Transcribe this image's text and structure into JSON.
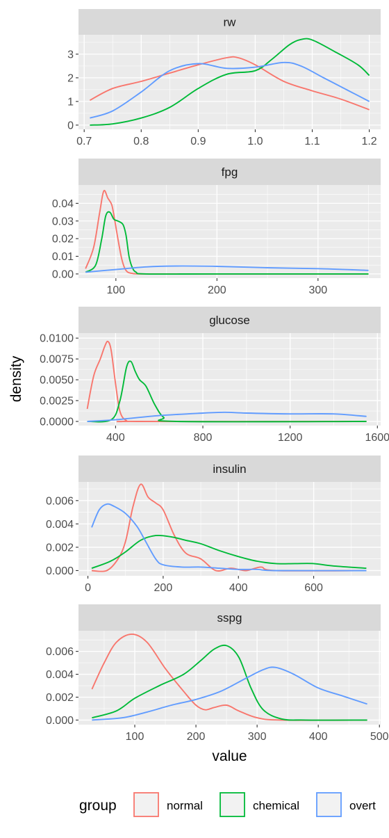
{
  "chart_data": {
    "type": "line",
    "xlabel": "value",
    "ylabel": "density",
    "grid": true,
    "legend": {
      "title": "group",
      "position": "bottom",
      "entries": [
        {
          "label": "normal",
          "color": "#F8766D"
        },
        {
          "label": "chemical",
          "color": "#00BA38"
        },
        {
          "label": "overt",
          "color": "#619CFF"
        }
      ]
    },
    "panels": [
      {
        "title": "rw",
        "xlim": [
          0.69,
          1.22
        ],
        "ylim": [
          -0.18,
          3.82
        ],
        "xticks": [
          0.7,
          0.8,
          0.9,
          1.0,
          1.1,
          1.2
        ],
        "xtick_labels": [
          "0.7",
          "0.8",
          "0.9",
          "1.0",
          "1.1",
          "1.2"
        ],
        "yticks": [
          0,
          1,
          2,
          3
        ],
        "ytick_labels": [
          "0",
          "1",
          "2",
          "3"
        ],
        "series": [
          {
            "name": "normal",
            "x": [
              0.71,
              0.75,
              0.8,
              0.85,
              0.9,
              0.95,
              0.97,
              1.0,
              1.05,
              1.1,
              1.15,
              1.2
            ],
            "y": [
              1.05,
              1.55,
              1.85,
              2.2,
              2.55,
              2.85,
              2.85,
              2.55,
              1.85,
              1.45,
              1.1,
              0.65
            ]
          },
          {
            "name": "chemical",
            "x": [
              0.71,
              0.75,
              0.8,
              0.85,
              0.9,
              0.95,
              1.0,
              1.03,
              1.06,
              1.08,
              1.1,
              1.14,
              1.18,
              1.2
            ],
            "y": [
              0.0,
              0.05,
              0.3,
              0.75,
              1.55,
              2.15,
              2.3,
              2.8,
              3.4,
              3.62,
              3.6,
              3.1,
              2.55,
              2.1
            ]
          },
          {
            "name": "overt",
            "x": [
              0.71,
              0.75,
              0.8,
              0.85,
              0.9,
              0.95,
              1.0,
              1.05,
              1.08,
              1.12,
              1.16,
              1.2
            ],
            "y": [
              0.3,
              0.6,
              1.4,
              2.3,
              2.6,
              2.4,
              2.45,
              2.65,
              2.5,
              2.0,
              1.5,
              1.0
            ]
          }
        ]
      },
      {
        "title": "fpg",
        "xlim": [
          63,
          362
        ],
        "ylim": [
          -0.0024,
          0.0504
        ],
        "xticks": [
          100,
          200,
          300
        ],
        "xtick_labels": [
          "100",
          "200",
          "300"
        ],
        "yticks": [
          0,
          0.01,
          0.02,
          0.03,
          0.04
        ],
        "ytick_labels": [
          "0.00",
          "0.01",
          "0.02",
          "0.03",
          "0.04"
        ],
        "series": [
          {
            "name": "normal",
            "x": [
              70,
              78,
              84,
              88,
              92,
              96,
              99,
              102,
              106,
              110,
              116,
              130,
              200,
              350
            ],
            "y": [
              0.003,
              0.015,
              0.035,
              0.047,
              0.043,
              0.039,
              0.03,
              0.02,
              0.008,
              0.002,
              0.0003,
              0.0,
              0.0,
              0.0
            ]
          },
          {
            "name": "chemical",
            "x": [
              70,
              80,
              86,
              90,
              94,
              98,
              102,
              107,
              110,
              113,
              116,
              120,
              130,
              200,
              350
            ],
            "y": [
              0.001,
              0.005,
              0.02,
              0.033,
              0.035,
              0.031,
              0.03,
              0.028,
              0.022,
              0.01,
              0.004,
              0.001,
              0.0,
              0.0,
              0.0
            ]
          },
          {
            "name": "overt",
            "x": [
              70,
              100,
              130,
              160,
              200,
              250,
              300,
              350
            ],
            "y": [
              0.001,
              0.0025,
              0.004,
              0.0045,
              0.0043,
              0.0035,
              0.003,
              0.002
            ]
          }
        ]
      },
      {
        "title": "glucose",
        "xlim": [
          230,
          1615
        ],
        "ylim": [
          -0.0005,
          0.0106
        ],
        "xticks": [
          400,
          800,
          1200,
          1600
        ],
        "xtick_labels": [
          "400",
          "800",
          "1200",
          "1600"
        ],
        "yticks": [
          0,
          0.0025,
          0.005,
          0.0075,
          0.01
        ],
        "ytick_labels": [
          "0.0000",
          "0.0025",
          "0.0050",
          "0.0075",
          "0.0100"
        ],
        "series": [
          {
            "name": "normal",
            "x": [
              270,
              300,
              330,
              350,
              365,
              380,
              400,
              420,
              450,
              500,
              1550
            ],
            "y": [
              0.0015,
              0.0055,
              0.0075,
              0.009,
              0.0096,
              0.0085,
              0.0045,
              0.0012,
              0.0001,
              0.0,
              0.0
            ]
          },
          {
            "name": "chemical",
            "x": [
              270,
              380,
              420,
              450,
              470,
              490,
              510,
              540,
              580,
              620,
              680,
              1550
            ],
            "y": [
              0.0,
              0.0002,
              0.0025,
              0.0065,
              0.0072,
              0.006,
              0.005,
              0.0042,
              0.002,
              0.0005,
              0.0,
              0.0
            ]
          },
          {
            "name": "overt",
            "x": [
              270,
              400,
              600,
              800,
              900,
              1000,
              1200,
              1400,
              1550
            ],
            "y": [
              0.0,
              0.0002,
              0.0007,
              0.001,
              0.0011,
              0.001,
              0.0009,
              0.0009,
              0.0006
            ]
          }
        ]
      },
      {
        "title": "insulin",
        "xlim": [
          -25,
          778
        ],
        "ylim": [
          -0.00045,
          0.0076
        ],
        "xticks": [
          0,
          200,
          400,
          600
        ],
        "xtick_labels": [
          "0",
          "200",
          "400",
          "600"
        ],
        "yticks": [
          0,
          0.002,
          0.004,
          0.006
        ],
        "ytick_labels": [
          "0.000",
          "0.002",
          "0.004",
          "0.006"
        ],
        "series": [
          {
            "name": "normal",
            "x": [
              10,
              50,
              80,
              100,
              120,
              140,
              160,
              180,
              200,
              230,
              260,
              300,
              340,
              380,
              420,
              460,
              500,
              740
            ],
            "y": [
              0.0,
              0.0,
              0.001,
              0.0025,
              0.0055,
              0.0074,
              0.0063,
              0.0058,
              0.0052,
              0.003,
              0.0015,
              0.001,
              0.0,
              0.0002,
              0.0,
              0.0003,
              0.0,
              0.0
            ]
          },
          {
            "name": "chemical",
            "x": [
              10,
              60,
              100,
              140,
              180,
              220,
              260,
              300,
              350,
              400,
              450,
              500,
              550,
              600,
              650,
              740
            ],
            "y": [
              0.0002,
              0.0008,
              0.0016,
              0.0026,
              0.003,
              0.0029,
              0.0026,
              0.0023,
              0.0017,
              0.0012,
              0.0008,
              0.0006,
              0.0006,
              0.0006,
              0.0004,
              0.0002
            ]
          },
          {
            "name": "overt",
            "x": [
              10,
              30,
              50,
              70,
              100,
              130,
              150,
              180,
              200,
              250,
              300,
              350,
              400,
              450,
              500,
              740
            ],
            "y": [
              0.0037,
              0.0052,
              0.0057,
              0.0055,
              0.0049,
              0.0038,
              0.0027,
              0.001,
              0.0005,
              0.0003,
              0.0003,
              0.0002,
              0.0001,
              0.0001,
              0.0,
              0.0
            ]
          }
        ]
      },
      {
        "title": "sspg",
        "xlim": [
          8,
          502
        ],
        "ylim": [
          -0.0004,
          0.0078
        ],
        "xticks": [
          100,
          200,
          300,
          400,
          500
        ],
        "xtick_labels": [
          "100",
          "200",
          "300",
          "400",
          "500"
        ],
        "yticks": [
          0,
          0.002,
          0.004,
          0.006
        ],
        "ytick_labels": [
          "0.000",
          "0.002",
          "0.004",
          "0.006"
        ],
        "series": [
          {
            "name": "normal",
            "x": [
              30,
              50,
              70,
              95,
              120,
              150,
              180,
              200,
              215,
              230,
              250,
              270,
              300,
              340,
              480
            ],
            "y": [
              0.0027,
              0.005,
              0.0068,
              0.0075,
              0.0068,
              0.0045,
              0.0025,
              0.0013,
              0.0009,
              0.0011,
              0.0013,
              0.0008,
              0.0002,
              0.0,
              0.0
            ]
          },
          {
            "name": "chemical",
            "x": [
              30,
              70,
              100,
              140,
              180,
              210,
              230,
              250,
              270,
              290,
              310,
              340,
              380,
              480
            ],
            "y": [
              0.0002,
              0.0008,
              0.0019,
              0.003,
              0.004,
              0.0053,
              0.0062,
              0.0065,
              0.0055,
              0.0028,
              0.0009,
              0.0001,
              0.0,
              0.0
            ]
          },
          {
            "name": "overt",
            "x": [
              30,
              80,
              120,
              160,
              200,
              240,
              280,
              310,
              330,
              360,
              400,
              440,
              480
            ],
            "y": [
              0.0,
              0.0002,
              0.0007,
              0.0013,
              0.0018,
              0.0025,
              0.0036,
              0.0044,
              0.0046,
              0.004,
              0.0028,
              0.0021,
              0.0014
            ]
          }
        ]
      }
    ]
  }
}
